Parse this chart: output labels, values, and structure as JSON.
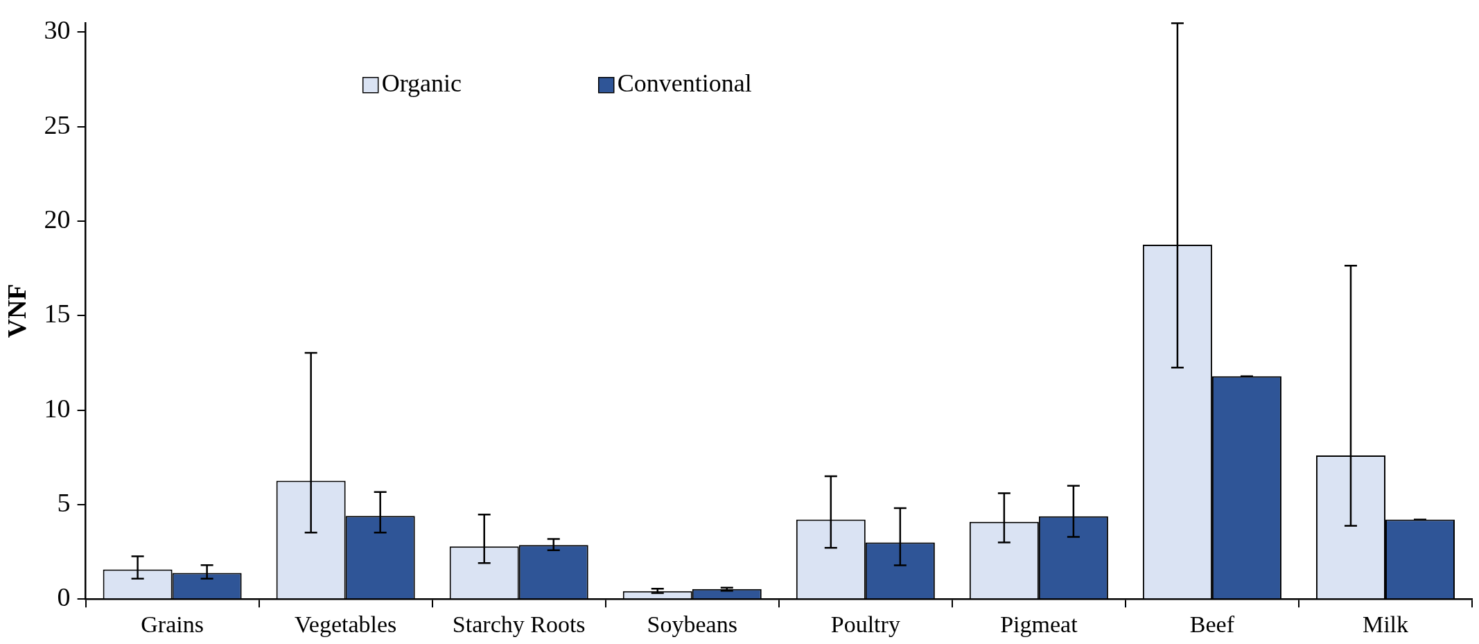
{
  "chart_data": {
    "type": "bar",
    "ylabel": "VNF",
    "categories": [
      "Grains",
      "Vegetables",
      "Starchy Roots",
      "Soybeans",
      "Poultry",
      "Pigmeat",
      "Beef",
      "Milk"
    ],
    "series": [
      {
        "name": "Organic",
        "color": "#dae3f3",
        "values": [
          1.57,
          6.26,
          2.79,
          0.42,
          4.21,
          4.09,
          18.75,
          7.6
        ],
        "errors": [
          [
            1.08,
            2.26
          ],
          [
            3.52,
            13.03
          ],
          [
            1.91,
            4.47
          ],
          [
            0.32,
            0.55
          ],
          [
            2.71,
            6.5
          ],
          [
            3.0,
            5.6
          ],
          [
            12.25,
            30.47
          ],
          [
            3.88,
            17.64
          ]
        ]
      },
      {
        "name": "Conventional",
        "color": "#2f5597",
        "values": [
          1.38,
          4.4,
          2.86,
          0.53,
          3.0,
          4.38,
          11.79,
          4.21
        ],
        "errors": [
          [
            1.08,
            1.8
          ],
          [
            3.52,
            5.67
          ],
          [
            2.58,
            3.18
          ],
          [
            0.44,
            0.6
          ],
          [
            1.79,
            4.81
          ],
          [
            3.29,
            6.0
          ],
          0,
          0
        ]
      }
    ],
    "ylim": [
      0,
      30.5
    ],
    "yticks": [
      0,
      5,
      10,
      15,
      20,
      25,
      30
    ],
    "grid": false,
    "legend": "top"
  }
}
